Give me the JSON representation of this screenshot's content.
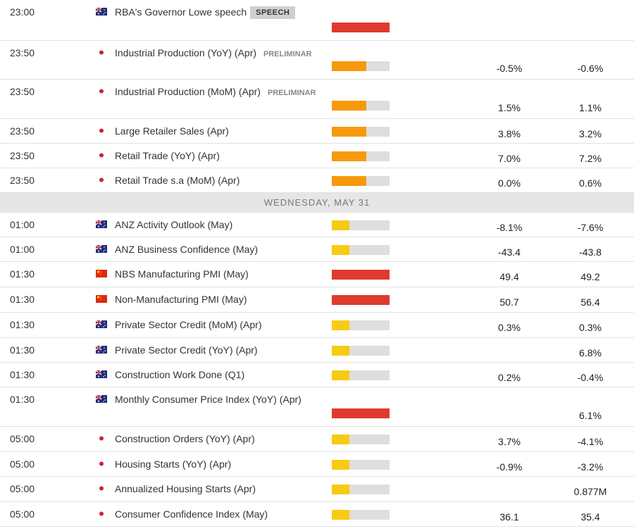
{
  "impact_colors": [
    "#f7cb14",
    "#f7990c",
    "#e03a2e"
  ],
  "rows": [
    {
      "time": "23:00",
      "flag": "au",
      "event": "RBA's Governor Lowe speech",
      "badge": "SPEECH",
      "impact": 3,
      "consensus": null,
      "previous": null
    },
    {
      "time": "23:50",
      "flag": "jp",
      "event": "Industrial Production (YoY) (Apr)",
      "tag": "PRELIMINAR",
      "impact": 2,
      "consensus": "-0.5%",
      "previous": "-0.6%"
    },
    {
      "time": "23:50",
      "flag": "jp",
      "event": "Industrial Production (MoM) (Apr)",
      "tag": "PRELIMINAR",
      "impact": 2,
      "consensus": "1.5%",
      "previous": "1.1%"
    },
    {
      "time": "23:50",
      "flag": "jp",
      "event": "Large Retailer Sales (Apr)",
      "impact": 2,
      "consensus": "3.8%",
      "previous": "3.2%"
    },
    {
      "time": "23:50",
      "flag": "jp",
      "event": "Retail Trade (YoY) (Apr)",
      "impact": 2,
      "consensus": "7.0%",
      "previous": "7.2%"
    },
    {
      "time": "23:50",
      "flag": "jp",
      "event": "Retail Trade s.a (MoM) (Apr)",
      "impact": 2,
      "consensus": "0.0%",
      "previous": "0.6%"
    },
    {
      "day": "WEDNESDAY, MAY 31"
    },
    {
      "time": "01:00",
      "flag": "au",
      "event": "ANZ Activity Outlook (May)",
      "impact": 1,
      "consensus": "-8.1%",
      "previous": "-7.6%"
    },
    {
      "time": "01:00",
      "flag": "au",
      "event": "ANZ Business Confidence (May)",
      "impact": 1,
      "consensus": "-43.4",
      "previous": "-43.8"
    },
    {
      "time": "01:30",
      "flag": "cn",
      "event": "NBS Manufacturing PMI (May)",
      "impact": 3,
      "consensus": "49.4",
      "previous": "49.2"
    },
    {
      "time": "01:30",
      "flag": "cn",
      "event": "Non-Manufacturing PMI (May)",
      "impact": 3,
      "consensus": "50.7",
      "previous": "56.4"
    },
    {
      "time": "01:30",
      "flag": "au",
      "event": "Private Sector Credit (MoM) (Apr)",
      "impact": 1,
      "consensus": "0.3%",
      "previous": "0.3%"
    },
    {
      "time": "01:30",
      "flag": "au",
      "event": "Private Sector Credit (YoY) (Apr)",
      "impact": 1,
      "consensus": null,
      "previous": "6.8%"
    },
    {
      "time": "01:30",
      "flag": "au",
      "event": "Construction Work Done (Q1)",
      "impact": 1,
      "consensus": "0.2%",
      "previous": "-0.4%"
    },
    {
      "time": "01:30",
      "flag": "au",
      "event": "Monthly Consumer Price Index (YoY) (Apr)",
      "impact": 3,
      "consensus": null,
      "previous": "6.1%"
    },
    {
      "time": "05:00",
      "flag": "jp",
      "event": "Construction Orders (YoY) (Apr)",
      "impact": 1,
      "consensus": "3.7%",
      "previous": "-4.1%"
    },
    {
      "time": "05:00",
      "flag": "jp",
      "event": "Housing Starts (YoY) (Apr)",
      "impact": 1,
      "consensus": "-0.9%",
      "previous": "-3.2%"
    },
    {
      "time": "05:00",
      "flag": "jp",
      "event": "Annualized Housing Starts (Apr)",
      "impact": 1,
      "consensus": null,
      "previous": "0.877M"
    },
    {
      "time": "05:00",
      "flag": "jp",
      "event": "Consumer Confidence Index (May)",
      "impact": 1,
      "consensus": "36.1",
      "previous": "35.4"
    }
  ]
}
